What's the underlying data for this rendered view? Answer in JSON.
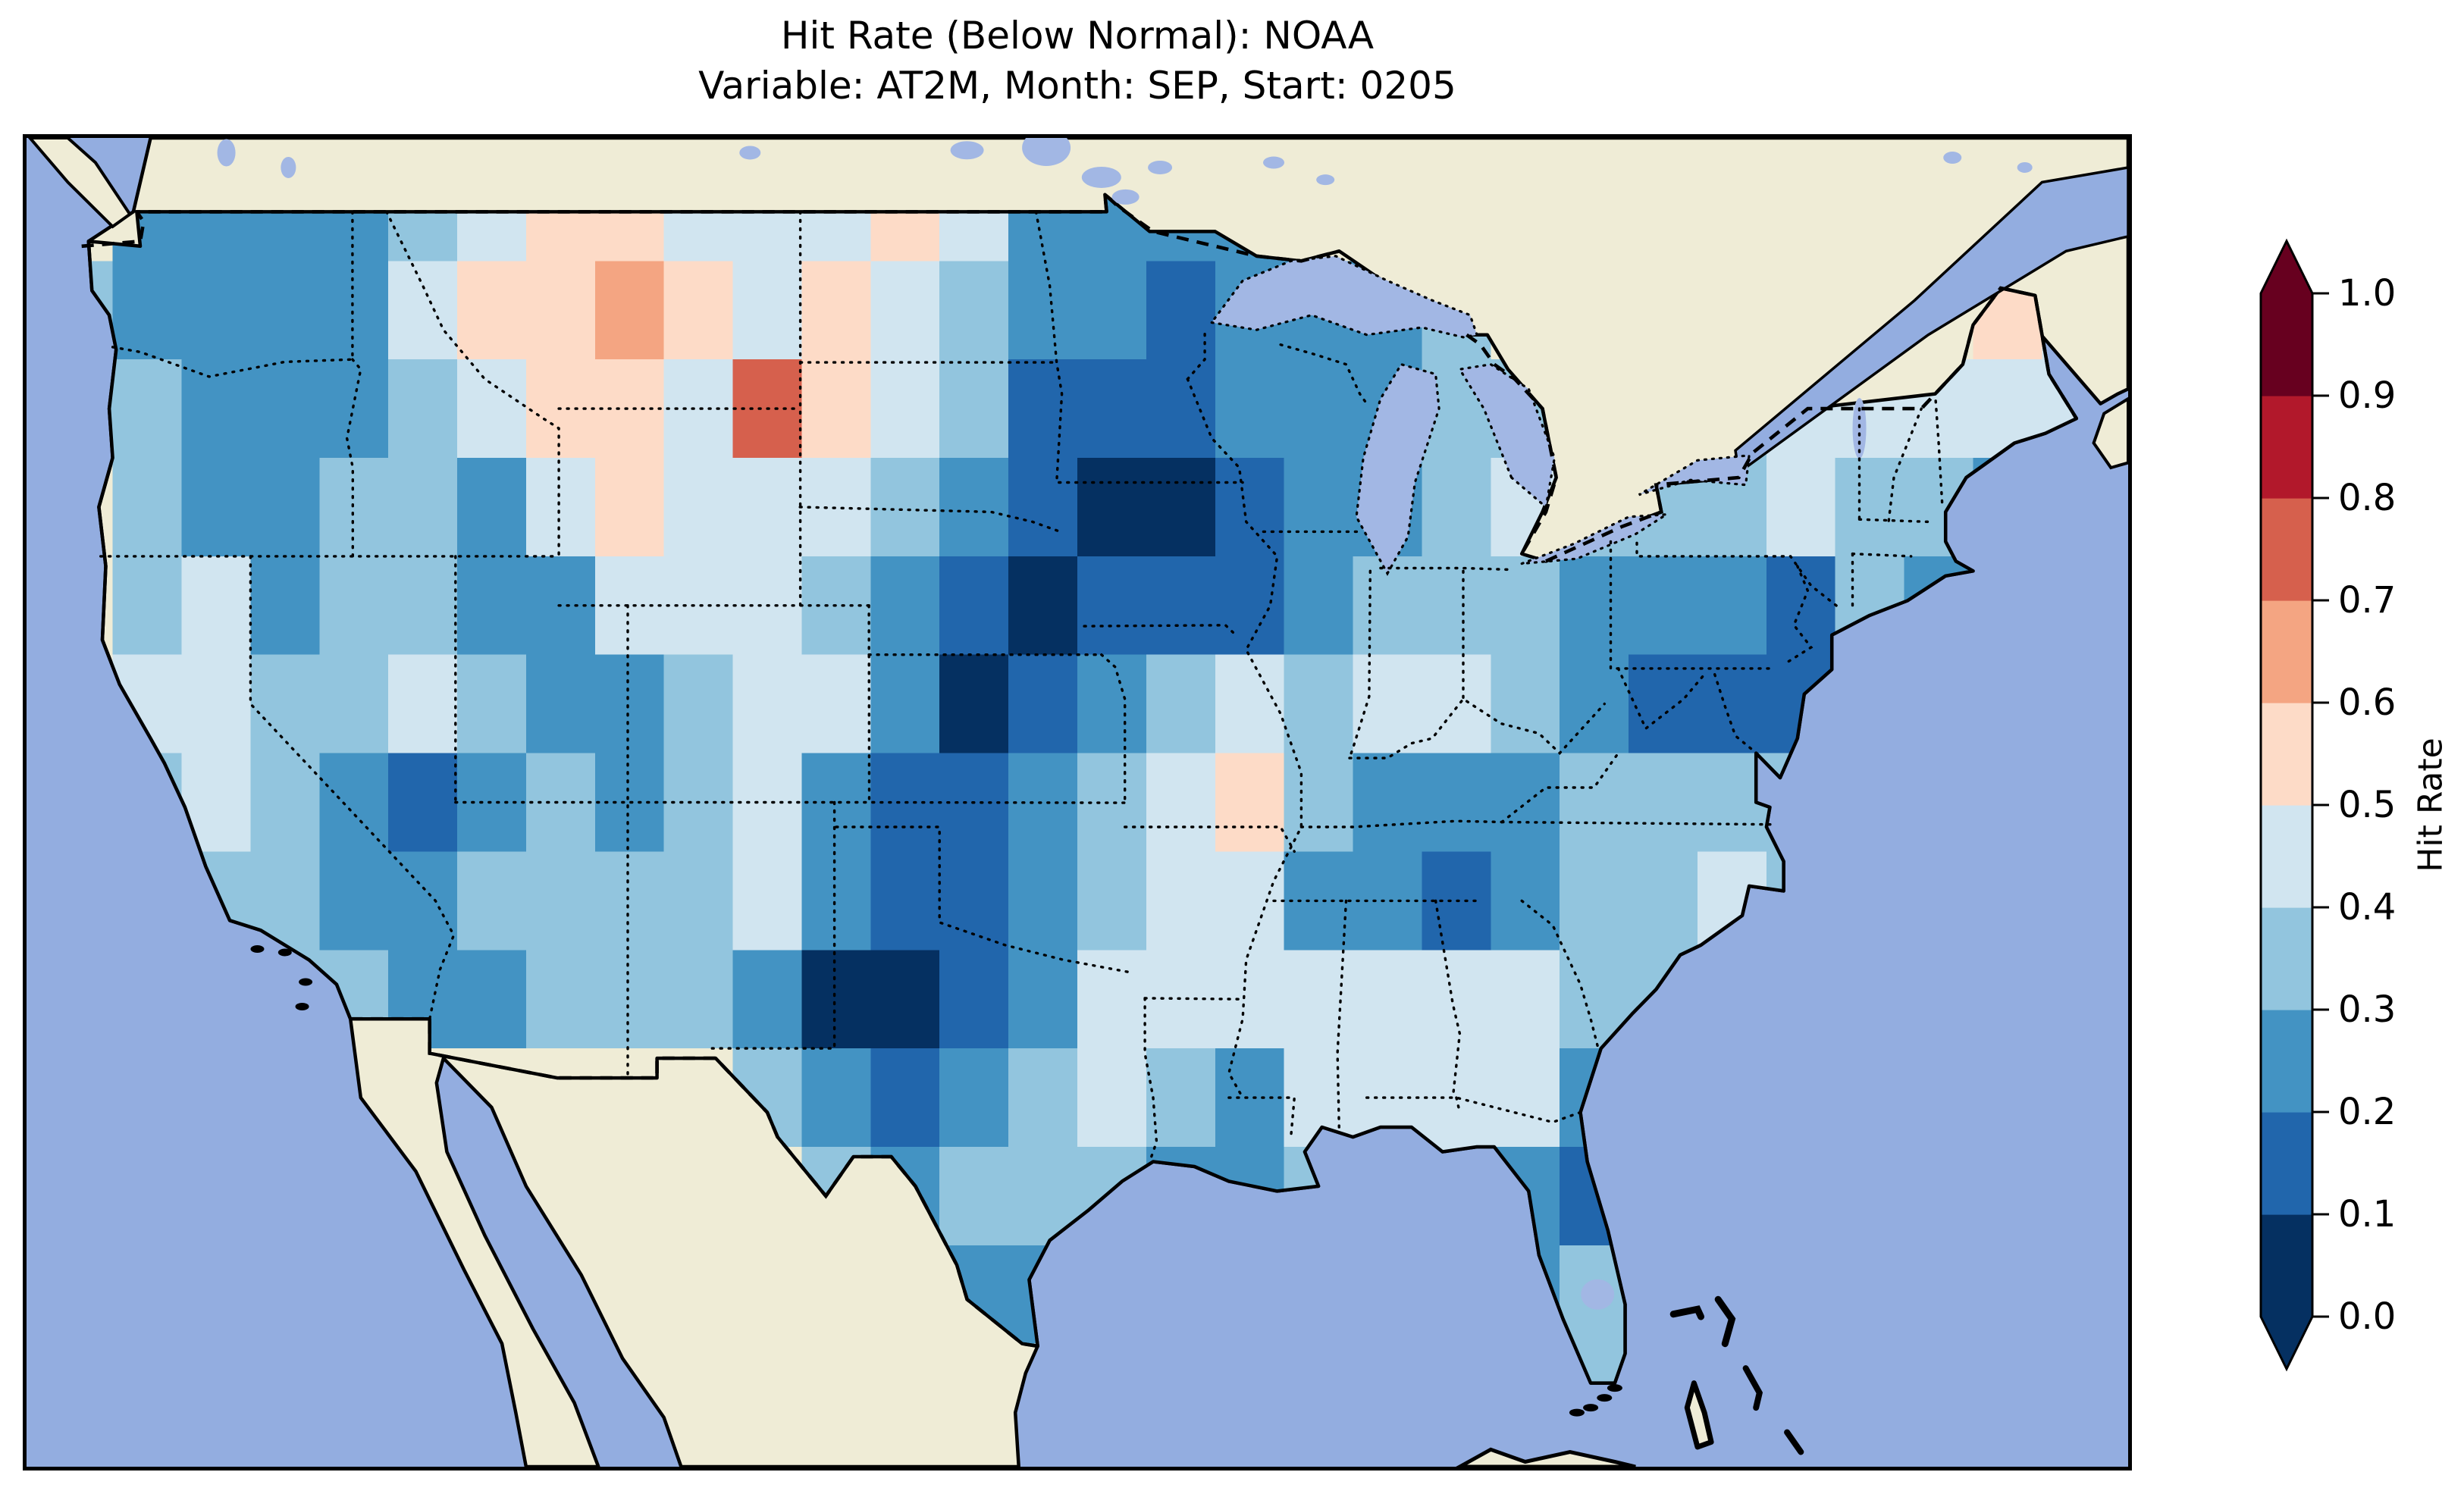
{
  "title": {
    "line1": "Hit Rate (Below Normal): NOAA",
    "line2": "Variable: AT2M, Month: SEP, Start: 0205"
  },
  "colorbar": {
    "label": "Hit Rate",
    "ticks_top_to_bottom": [
      "1.0",
      "0.9",
      "0.8",
      "0.7",
      "0.6",
      "0.5",
      "0.4",
      "0.3",
      "0.2",
      "0.1",
      "0.0"
    ],
    "colors_low_to_high": [
      "#053061",
      "#2166ac",
      "#4393c3",
      "#92c5de",
      "#d1e5f0",
      "#fddbc7",
      "#f4a582",
      "#d6604d",
      "#b2182b",
      "#67001f"
    ],
    "extend": "both",
    "over_color": "#67001f",
    "under_color": "#053061"
  },
  "map": {
    "ocean_color": "#93ADE0",
    "lake_color": "#A2B7E4",
    "land_color": "#EFECD6",
    "coastline_color": "#000000",
    "state_border_style": "dotted",
    "country_border_style": "dashed"
  },
  "chart_data": {
    "type": "heatmap",
    "title": "Hit Rate (Below Normal): NOAA",
    "subtitle": "Variable: AT2M, Month: SEP, Start: 0205",
    "metric": "Hit Rate (Below Normal)",
    "source": "NOAA",
    "variable": "AT2M",
    "month": "SEP",
    "start": "0205",
    "colorbar_label": "Hit Rate",
    "value_bins": [
      0.0,
      0.1,
      0.2,
      0.3,
      0.4,
      0.5,
      0.6,
      0.7,
      0.8,
      0.9,
      1.0
    ],
    "region": "Contiguous United States",
    "legend_position": "right",
    "grid": {
      "lon_centers": [
        -125,
        -123,
        -121,
        -119,
        -117,
        -115,
        -113,
        -111,
        -109,
        -107,
        -105,
        -103,
        -101,
        -99,
        -97,
        -95,
        -93,
        -91,
        -89,
        -87,
        -85,
        -83,
        -81,
        -79,
        -77,
        -75,
        -73,
        -71,
        -69,
        -67
      ],
      "lat_centers": [
        49,
        47,
        45,
        43,
        41,
        39,
        37,
        35,
        33,
        31,
        29,
        27,
        25
      ],
      "cell_size_deg": 2,
      "values": [
        [
          null,
          0.25,
          0.25,
          0.25,
          0.25,
          0.35,
          0.45,
          0.55,
          0.55,
          0.45,
          0.45,
          0.45,
          0.55,
          0.45,
          0.25,
          0.25,
          0.25,
          0.25,
          null,
          null,
          null,
          null,
          null,
          null,
          null,
          null,
          null,
          null,
          null,
          null
        ],
        [
          0.35,
          0.25,
          0.25,
          0.25,
          0.25,
          0.45,
          0.55,
          0.55,
          0.65,
          0.55,
          0.45,
          0.55,
          0.45,
          0.35,
          0.25,
          0.25,
          0.15,
          0.25,
          0.25,
          0.25,
          0.35,
          null,
          null,
          null,
          null,
          null,
          null,
          null,
          0.55,
          0.45
        ],
        [
          0.35,
          0.35,
          0.25,
          0.25,
          0.25,
          0.35,
          0.45,
          0.55,
          0.55,
          0.45,
          0.75,
          0.55,
          0.45,
          0.35,
          0.15,
          0.15,
          0.15,
          0.25,
          0.25,
          0.25,
          0.35,
          0.35,
          null,
          null,
          0.35,
          0.45,
          0.45,
          0.45,
          0.45,
          0.45
        ],
        [
          null,
          0.35,
          0.25,
          0.25,
          0.35,
          0.35,
          0.25,
          0.45,
          0.55,
          0.45,
          0.45,
          0.45,
          0.35,
          0.25,
          0.15,
          0.05,
          0.05,
          0.15,
          0.25,
          0.25,
          0.35,
          0.45,
          0.35,
          0.35,
          0.35,
          0.45,
          0.35,
          0.35,
          0.25,
          null
        ],
        [
          null,
          0.35,
          0.45,
          0.25,
          0.35,
          0.35,
          0.25,
          0.25,
          0.45,
          0.45,
          0.45,
          0.35,
          0.25,
          0.15,
          0.05,
          0.15,
          0.15,
          0.15,
          0.25,
          0.35,
          0.35,
          0.35,
          0.25,
          0.25,
          0.25,
          0.15,
          0.35,
          0.25,
          null,
          null
        ],
        [
          null,
          0.45,
          0.45,
          0.35,
          0.35,
          0.45,
          0.35,
          0.25,
          0.25,
          0.35,
          0.45,
          0.45,
          0.25,
          0.05,
          0.15,
          0.25,
          0.35,
          0.45,
          0.35,
          0.45,
          0.45,
          0.35,
          0.25,
          0.15,
          0.15,
          0.15,
          null,
          null,
          null,
          null
        ],
        [
          null,
          0.35,
          0.45,
          0.35,
          0.25,
          0.15,
          0.25,
          0.35,
          0.25,
          0.35,
          0.45,
          0.25,
          0.15,
          0.15,
          0.25,
          0.35,
          0.45,
          0.55,
          0.35,
          0.25,
          0.25,
          0.25,
          0.35,
          0.35,
          0.35,
          0.35,
          null,
          null,
          null,
          null
        ],
        [
          null,
          null,
          0.35,
          0.35,
          0.25,
          0.25,
          0.35,
          0.35,
          0.35,
          0.35,
          0.45,
          0.25,
          0.15,
          0.15,
          0.25,
          0.35,
          0.45,
          0.45,
          0.25,
          0.25,
          0.15,
          0.25,
          0.35,
          0.35,
          0.45,
          0.35,
          null,
          null,
          null,
          null
        ],
        [
          null,
          null,
          null,
          0.35,
          0.35,
          0.25,
          0.25,
          0.35,
          0.35,
          0.35,
          0.25,
          0.05,
          0.05,
          0.15,
          0.25,
          0.45,
          0.45,
          0.45,
          0.45,
          0.45,
          0.45,
          0.45,
          0.35,
          0.35,
          0.25,
          null,
          null,
          null,
          null,
          null
        ],
        [
          null,
          null,
          null,
          null,
          null,
          null,
          null,
          null,
          null,
          null,
          0.35,
          0.25,
          0.15,
          0.25,
          0.35,
          0.45,
          0.35,
          0.25,
          0.45,
          0.45,
          0.45,
          0.45,
          0.25,
          null,
          null,
          null,
          null,
          null,
          null,
          null
        ],
        [
          null,
          null,
          null,
          null,
          null,
          null,
          null,
          null,
          null,
          null,
          null,
          0.35,
          0.25,
          0.35,
          0.35,
          0.35,
          0.25,
          0.25,
          0.35,
          0.45,
          0.45,
          0.25,
          0.15,
          null,
          null,
          null,
          null,
          null,
          null,
          null
        ],
        [
          null,
          null,
          null,
          null,
          null,
          null,
          null,
          null,
          null,
          null,
          null,
          null,
          null,
          0.25,
          0.25,
          null,
          null,
          null,
          null,
          null,
          null,
          0.25,
          0.35,
          null,
          null,
          null,
          null,
          null,
          null,
          null
        ],
        [
          null,
          null,
          null,
          null,
          null,
          null,
          null,
          null,
          null,
          null,
          null,
          null,
          null,
          0.25,
          null,
          null,
          null,
          null,
          null,
          null,
          0.45,
          0.35,
          0.35,
          null,
          null,
          null,
          null,
          null,
          null,
          null
        ]
      ]
    }
  }
}
